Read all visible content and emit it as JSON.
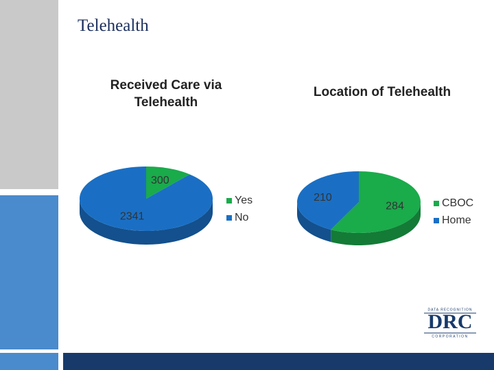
{
  "title": "Telehealth",
  "chart_data": [
    {
      "type": "pie",
      "title": "Received Care via Telehealth",
      "categories": [
        "Yes",
        "No"
      ],
      "values": [
        300,
        2341
      ],
      "colors": [
        "#1aab4b",
        "#1a6fc4"
      ]
    },
    {
      "type": "pie",
      "title": "Location of Telehealth",
      "categories": [
        "CBOC",
        "Home"
      ],
      "values": [
        284,
        210
      ],
      "colors": [
        "#1aab4b",
        "#1a6fc4"
      ]
    }
  ],
  "logo": {
    "top": "DATA RECOGNITION",
    "main": "DRC",
    "bottom": "CORPORATION"
  }
}
